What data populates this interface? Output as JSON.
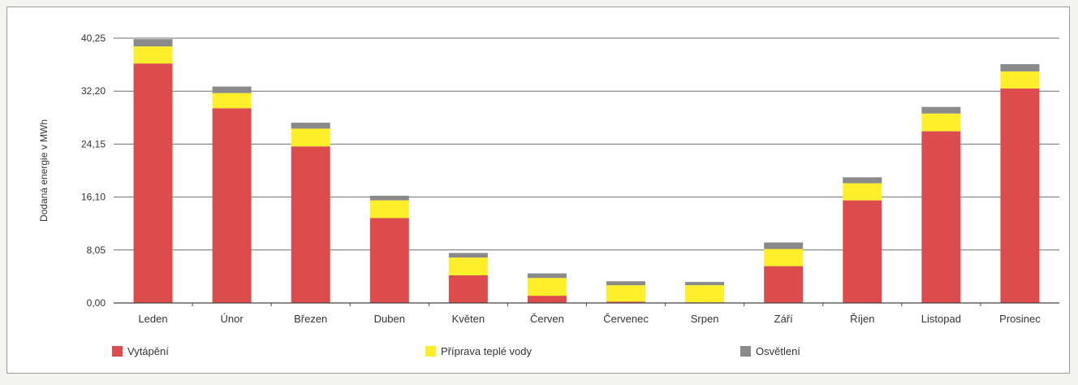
{
  "chart_data": {
    "type": "bar",
    "stacked": true,
    "ylabel": "Dodaná energie v MWh",
    "yticks": [
      "0,00",
      "8,05",
      "16,10",
      "24,15",
      "32,20",
      "40,25"
    ],
    "ylim": [
      0,
      40.25
    ],
    "grid": true,
    "legend_position": "bottom",
    "categories": [
      "Leden",
      "Únor",
      "Březen",
      "Duben",
      "Květen",
      "Červen",
      "Červenec",
      "Srpen",
      "Září",
      "Říjen",
      "Listopad",
      "Prosinec"
    ],
    "series": [
      {
        "name": "Vytápění",
        "color": "#dc4c4c",
        "values": [
          36.4,
          29.6,
          23.8,
          12.9,
          4.2,
          1.1,
          0.2,
          0.1,
          5.6,
          15.6,
          26.1,
          32.6
        ]
      },
      {
        "name": "Příprava teplé vody",
        "color": "#ffef2a",
        "values": [
          2.6,
          2.3,
          2.7,
          2.7,
          2.7,
          2.7,
          2.5,
          2.6,
          2.6,
          2.6,
          2.7,
          2.6
        ]
      },
      {
        "name": "Osvětlení",
        "color": "#8a8a8a",
        "values": [
          1.1,
          1.0,
          0.9,
          0.7,
          0.7,
          0.7,
          0.6,
          0.5,
          1.0,
          0.9,
          1.0,
          1.1
        ]
      }
    ]
  }
}
